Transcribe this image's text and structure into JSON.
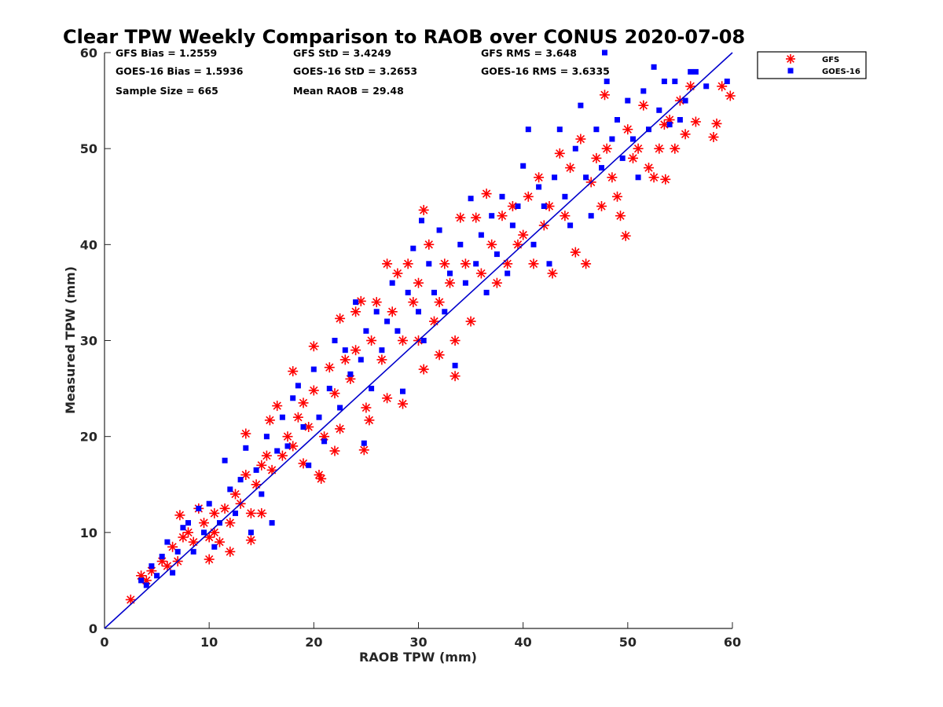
{
  "chart_data": {
    "type": "scatter",
    "title": "Clear TPW Weekly Comparison to RAOB over CONUS 2020-07-08",
    "xlabel": "RAOB TPW (mm)",
    "ylabel": "Measured TPW (mm)",
    "xlim": [
      0,
      60
    ],
    "ylim": [
      0,
      60
    ],
    "xticks": [
      "0",
      "10",
      "20",
      "30",
      "40",
      "50",
      "60"
    ],
    "yticks": [
      "0",
      "10",
      "20",
      "30",
      "40",
      "50",
      "60"
    ],
    "grid": false,
    "legend_position": "outside-top-right",
    "reference_line": {
      "name": "1:1",
      "x": [
        0,
        60
      ],
      "y": [
        0,
        60
      ],
      "color": "#0000cc"
    },
    "stats": [
      {
        "id": "gfs_bias",
        "text": "GFS Bias = 1.2559"
      },
      {
        "id": "gfs_std",
        "text": "GFS StD = 3.4249"
      },
      {
        "id": "gfs_rms",
        "text": "GFS RMS = 3.648"
      },
      {
        "id": "goes_bias",
        "text": "GOES-16 Bias = 1.5936"
      },
      {
        "id": "goes_std",
        "text": "GOES-16 StD = 3.2653"
      },
      {
        "id": "goes_rms",
        "text": "GOES-16 RMS = 3.6335"
      },
      {
        "id": "sample_size",
        "text": "Sample Size = 665"
      },
      {
        "id": "mean_raob",
        "text": "Mean RAOB = 29.48"
      }
    ],
    "series": [
      {
        "name": "GFS",
        "marker": "asterisk",
        "color": "#ff0000",
        "points": [
          [
            2.5,
            3.0
          ],
          [
            3.5,
            5.5
          ],
          [
            4.0,
            5.0
          ],
          [
            4.5,
            6.0
          ],
          [
            5.5,
            7.0
          ],
          [
            6.0,
            6.5
          ],
          [
            6.5,
            8.5
          ],
          [
            7.0,
            7.0
          ],
          [
            7.2,
            11.8
          ],
          [
            7.5,
            9.5
          ],
          [
            8.0,
            10.0
          ],
          [
            8.5,
            9.0
          ],
          [
            9.0,
            12.5
          ],
          [
            9.5,
            11.0
          ],
          [
            10.0,
            7.2
          ],
          [
            10.0,
            9.5
          ],
          [
            10.5,
            10.0
          ],
          [
            10.5,
            12.0
          ],
          [
            11.0,
            9.0
          ],
          [
            11.5,
            12.5
          ],
          [
            12.0,
            8.0
          ],
          [
            12.0,
            11.0
          ],
          [
            12.5,
            14.0
          ],
          [
            13.0,
            13.0
          ],
          [
            13.5,
            20.3
          ],
          [
            13.5,
            16.0
          ],
          [
            14.0,
            9.2
          ],
          [
            14.0,
            12.0
          ],
          [
            14.5,
            15.0
          ],
          [
            15.0,
            12.0
          ],
          [
            15.0,
            17.0
          ],
          [
            15.5,
            18.0
          ],
          [
            15.8,
            21.7
          ],
          [
            16.5,
            23.2
          ],
          [
            16.0,
            16.5
          ],
          [
            17.0,
            18.0
          ],
          [
            17.5,
            20.0
          ],
          [
            18.0,
            26.8
          ],
          [
            18.0,
            19.0
          ],
          [
            18.5,
            22.0
          ],
          [
            19.0,
            23.5
          ],
          [
            19.0,
            17.2
          ],
          [
            19.5,
            21.0
          ],
          [
            20.0,
            24.8
          ],
          [
            20.0,
            29.4
          ],
          [
            20.5,
            16.0
          ],
          [
            20.7,
            15.6
          ],
          [
            21.0,
            20.0
          ],
          [
            21.5,
            27.2
          ],
          [
            22.0,
            18.5
          ],
          [
            22.0,
            24.5
          ],
          [
            22.5,
            32.3
          ],
          [
            22.5,
            20.8
          ],
          [
            23.0,
            28.0
          ],
          [
            23.5,
            26.0
          ],
          [
            24.0,
            33.0
          ],
          [
            24.0,
            29.0
          ],
          [
            24.5,
            34.1
          ],
          [
            24.8,
            18.6
          ],
          [
            25.0,
            23.0
          ],
          [
            25.3,
            21.7
          ],
          [
            25.5,
            30.0
          ],
          [
            26.0,
            34.0
          ],
          [
            26.5,
            28.0
          ],
          [
            27.0,
            38.0
          ],
          [
            27.0,
            24.0
          ],
          [
            27.5,
            33.0
          ],
          [
            28.0,
            37.0
          ],
          [
            28.5,
            23.4
          ],
          [
            28.5,
            30.0
          ],
          [
            29.0,
            38.0
          ],
          [
            29.5,
            34.0
          ],
          [
            30.0,
            36.0
          ],
          [
            30.0,
            30.0
          ],
          [
            30.5,
            43.6
          ],
          [
            30.5,
            27.0
          ],
          [
            31.0,
            40.0
          ],
          [
            31.5,
            32.0
          ],
          [
            32.0,
            34.0
          ],
          [
            32.0,
            28.5
          ],
          [
            32.5,
            38.0
          ],
          [
            33.0,
            36.0
          ],
          [
            33.5,
            26.3
          ],
          [
            33.5,
            30.0
          ],
          [
            34.0,
            42.8
          ],
          [
            34.5,
            38.0
          ],
          [
            35.0,
            32.0
          ],
          [
            35.5,
            42.8
          ],
          [
            36.0,
            37.0
          ],
          [
            36.5,
            45.3
          ],
          [
            37.0,
            40.0
          ],
          [
            37.5,
            36.0
          ],
          [
            38.0,
            43.0
          ],
          [
            38.5,
            38.0
          ],
          [
            39.0,
            44.0
          ],
          [
            39.5,
            40.0
          ],
          [
            40.0,
            41.0
          ],
          [
            40.5,
            45.0
          ],
          [
            41.0,
            38.0
          ],
          [
            41.5,
            47.0
          ],
          [
            42.0,
            42.0
          ],
          [
            42.5,
            44.0
          ],
          [
            42.8,
            37.0
          ],
          [
            43.5,
            49.5
          ],
          [
            44.0,
            43.0
          ],
          [
            44.5,
            48.0
          ],
          [
            45.0,
            39.2
          ],
          [
            45.5,
            51.0
          ],
          [
            46.0,
            38.0
          ],
          [
            46.5,
            46.5
          ],
          [
            47.0,
            49.0
          ],
          [
            47.8,
            55.6
          ],
          [
            47.5,
            44.0
          ],
          [
            48.0,
            50.0
          ],
          [
            48.5,
            47.0
          ],
          [
            49.0,
            45.0
          ],
          [
            49.3,
            43.0
          ],
          [
            49.8,
            40.9
          ],
          [
            50.0,
            52.0
          ],
          [
            50.5,
            49.0
          ],
          [
            51.0,
            50.0
          ],
          [
            51.5,
            54.5
          ],
          [
            52.0,
            48.0
          ],
          [
            52.5,
            47.0
          ],
          [
            53.0,
            50.0
          ],
          [
            53.5,
            52.5
          ],
          [
            53.6,
            46.8
          ],
          [
            54.0,
            53.0
          ],
          [
            54.5,
            50.0
          ],
          [
            55.0,
            55.0
          ],
          [
            55.5,
            51.5
          ],
          [
            56.0,
            56.5
          ],
          [
            56.5,
            52.8
          ],
          [
            58.2,
            51.2
          ],
          [
            58.5,
            52.6
          ],
          [
            59.0,
            56.5
          ],
          [
            59.8,
            55.5
          ]
        ]
      },
      {
        "name": "GOES-16",
        "marker": "square",
        "color": "#0000ff",
        "points": [
          [
            3.5,
            5.0
          ],
          [
            4.0,
            4.5
          ],
          [
            4.5,
            6.5
          ],
          [
            5.0,
            5.5
          ],
          [
            5.5,
            7.5
          ],
          [
            6.0,
            9.0
          ],
          [
            6.5,
            5.8
          ],
          [
            7.0,
            8.0
          ],
          [
            7.5,
            10.5
          ],
          [
            8.0,
            11.0
          ],
          [
            8.5,
            8.0
          ],
          [
            9.0,
            12.5
          ],
          [
            9.5,
            10.0
          ],
          [
            10.0,
            13.0
          ],
          [
            10.5,
            8.5
          ],
          [
            11.0,
            11.0
          ],
          [
            11.5,
            17.5
          ],
          [
            12.0,
            14.5
          ],
          [
            12.5,
            12.0
          ],
          [
            13.0,
            15.5
          ],
          [
            13.5,
            18.8
          ],
          [
            14.0,
            10.0
          ],
          [
            14.5,
            16.5
          ],
          [
            15.0,
            14.0
          ],
          [
            15.5,
            20.0
          ],
          [
            16.0,
            11.0
          ],
          [
            16.5,
            18.5
          ],
          [
            17.0,
            22.0
          ],
          [
            17.5,
            19.0
          ],
          [
            18.0,
            24.0
          ],
          [
            18.5,
            25.3
          ],
          [
            19.0,
            21.0
          ],
          [
            19.5,
            17.0
          ],
          [
            20.0,
            27.0
          ],
          [
            20.5,
            22.0
          ],
          [
            21.0,
            19.5
          ],
          [
            21.5,
            25.0
          ],
          [
            22.0,
            30.0
          ],
          [
            22.5,
            23.0
          ],
          [
            23.0,
            29.0
          ],
          [
            23.5,
            26.5
          ],
          [
            24.0,
            34.0
          ],
          [
            24.5,
            28.0
          ],
          [
            24.8,
            19.3
          ],
          [
            25.0,
            31.0
          ],
          [
            25.5,
            25.0
          ],
          [
            26.0,
            33.0
          ],
          [
            26.5,
            29.0
          ],
          [
            27.0,
            32.0
          ],
          [
            27.5,
            36.0
          ],
          [
            28.0,
            31.0
          ],
          [
            28.5,
            24.7
          ],
          [
            29.0,
            35.0
          ],
          [
            29.5,
            39.6
          ],
          [
            30.0,
            33.0
          ],
          [
            30.3,
            42.5
          ],
          [
            30.5,
            30.0
          ],
          [
            31.0,
            38.0
          ],
          [
            31.5,
            35.0
          ],
          [
            32.0,
            41.5
          ],
          [
            32.5,
            33.0
          ],
          [
            33.0,
            37.0
          ],
          [
            33.5,
            27.4
          ],
          [
            34.0,
            40.0
          ],
          [
            34.5,
            36.0
          ],
          [
            35.0,
            44.8
          ],
          [
            35.5,
            38.0
          ],
          [
            36.0,
            41.0
          ],
          [
            36.5,
            35.0
          ],
          [
            37.0,
            43.0
          ],
          [
            37.5,
            39.0
          ],
          [
            38.0,
            45.0
          ],
          [
            38.5,
            37.0
          ],
          [
            39.0,
            42.0
          ],
          [
            39.5,
            44.0
          ],
          [
            40.0,
            48.2
          ],
          [
            40.5,
            52.0
          ],
          [
            41.0,
            40.0
          ],
          [
            41.5,
            46.0
          ],
          [
            42.0,
            44.0
          ],
          [
            42.5,
            38.0
          ],
          [
            43.0,
            47.0
          ],
          [
            43.5,
            52.0
          ],
          [
            44.0,
            45.0
          ],
          [
            44.5,
            42.0
          ],
          [
            45.0,
            50.0
          ],
          [
            45.5,
            54.5
          ],
          [
            46.0,
            47.0
          ],
          [
            46.5,
            43.0
          ],
          [
            47.0,
            52.0
          ],
          [
            47.5,
            48.0
          ],
          [
            47.8,
            60.0
          ],
          [
            48.0,
            57.0
          ],
          [
            48.5,
            51.0
          ],
          [
            49.0,
            53.0
          ],
          [
            49.5,
            49.0
          ],
          [
            50.0,
            55.0
          ],
          [
            50.5,
            51.0
          ],
          [
            51.0,
            47.0
          ],
          [
            51.5,
            56.0
          ],
          [
            52.0,
            52.0
          ],
          [
            52.5,
            58.5
          ],
          [
            53.0,
            54.0
          ],
          [
            53.5,
            57.0
          ],
          [
            54.0,
            52.5
          ],
          [
            54.5,
            57.0
          ],
          [
            55.0,
            53.0
          ],
          [
            55.5,
            55.0
          ],
          [
            56.0,
            58.0
          ],
          [
            56.5,
            58.0
          ],
          [
            57.5,
            56.5
          ],
          [
            59.5,
            57.0
          ]
        ]
      }
    ]
  }
}
